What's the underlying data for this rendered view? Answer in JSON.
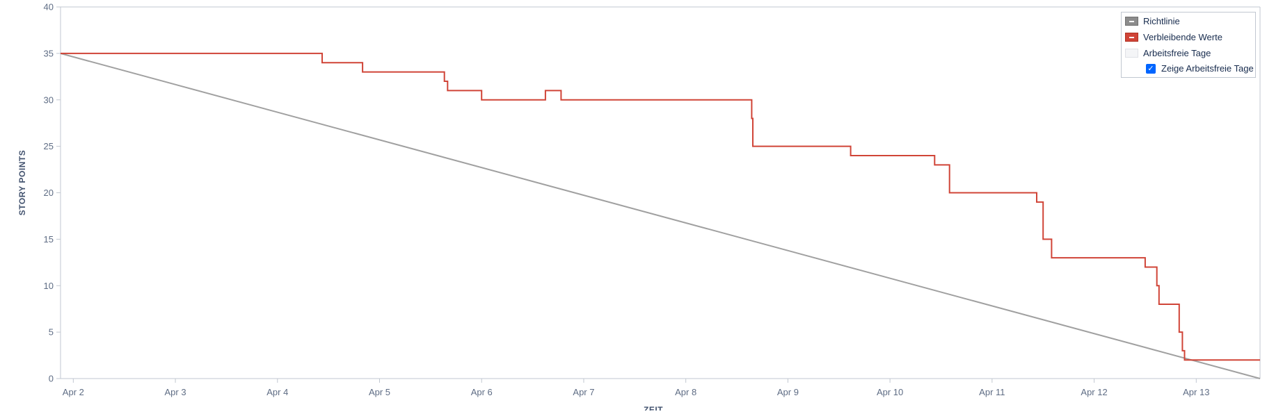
{
  "legend": {
    "guide": "Richtlinie",
    "remaining": "Verbleibende Werte",
    "nonworking": "Arbeitsfreie Tage",
    "show_nonworking": "Zeige Arbeitsfreie Tage",
    "show_nonworking_checked": true
  },
  "colors": {
    "guide": "#a0a0a0",
    "remaining": "#d04437",
    "axis": "#c1c7d0",
    "text": "#5e6c84"
  },
  "chart_data": {
    "type": "line",
    "title": "",
    "xlabel": "ZEIT",
    "ylabel": "STORY POINTS",
    "xlim": [
      "Apr 1 21:00",
      "Apr 13 15:00"
    ],
    "ylim": [
      0,
      40
    ],
    "yticks": [
      0,
      5,
      10,
      15,
      20,
      25,
      30,
      35,
      40
    ],
    "xticks": [
      "Apr 2",
      "Apr 3",
      "Apr 4",
      "Apr 5",
      "Apr 6",
      "Apr 7",
      "Apr 8",
      "Apr 9",
      "Apr 10",
      "Apr 11",
      "Apr 12",
      "Apr 13"
    ],
    "grid": false,
    "legend_position": "top-right",
    "series": [
      {
        "name": "Richtlinie",
        "style": "line",
        "x": [
          "Apr 1 21:00",
          "Apr 13 15:00"
        ],
        "y": [
          35,
          0
        ]
      },
      {
        "name": "Verbleibende Werte",
        "style": "step",
        "x": [
          "Apr 1 21:00",
          "Apr 4 10:30",
          "Apr 4 20:00",
          "Apr 5 15:15",
          "Apr 5 16:00",
          "Apr 6 0:00",
          "Apr 6 15:00",
          "Apr 6 18:40",
          "Apr 8 15:30",
          "Apr 8 15:45",
          "Apr 9 14:45",
          "Apr 10 10:30",
          "Apr 10 14:00",
          "Apr 11 10:30",
          "Apr 11 12:00",
          "Apr 11 14:00",
          "Apr 12 12:00",
          "Apr 12 14:45",
          "Apr 12 15:15",
          "Apr 12 20:00",
          "Apr 12 20:45",
          "Apr 12 21:15",
          "Apr 13 15:00"
        ],
        "y": [
          35,
          34,
          33,
          32,
          31,
          30,
          31,
          30,
          28,
          25,
          24,
          23,
          20,
          19,
          15,
          13,
          12,
          10,
          8,
          5,
          3,
          2,
          2
        ]
      }
    ]
  }
}
